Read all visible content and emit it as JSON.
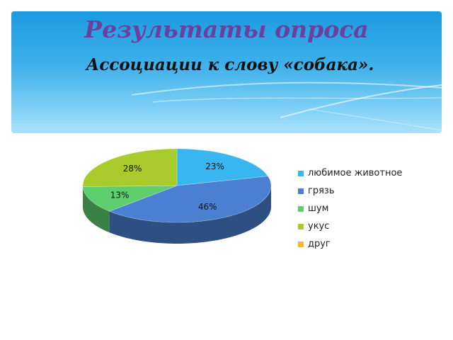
{
  "slide": {
    "title": "Результаты опроса",
    "subtitle": "Ассоциации к слову «собака»."
  },
  "chart_data": {
    "type": "pie",
    "title": "",
    "three_d": true,
    "legend_position": "right",
    "categories": [
      "любимое животное",
      "грязь",
      "шум",
      "укус",
      "друг"
    ],
    "values": [
      23,
      46,
      13,
      28,
      0
    ],
    "labels": [
      "23%",
      "46%",
      "13%",
      "28%",
      ""
    ],
    "colors": [
      "#38b6ef",
      "#4a7fd2",
      "#5fce6e",
      "#a9cb2c",
      "#f2b830"
    ]
  }
}
